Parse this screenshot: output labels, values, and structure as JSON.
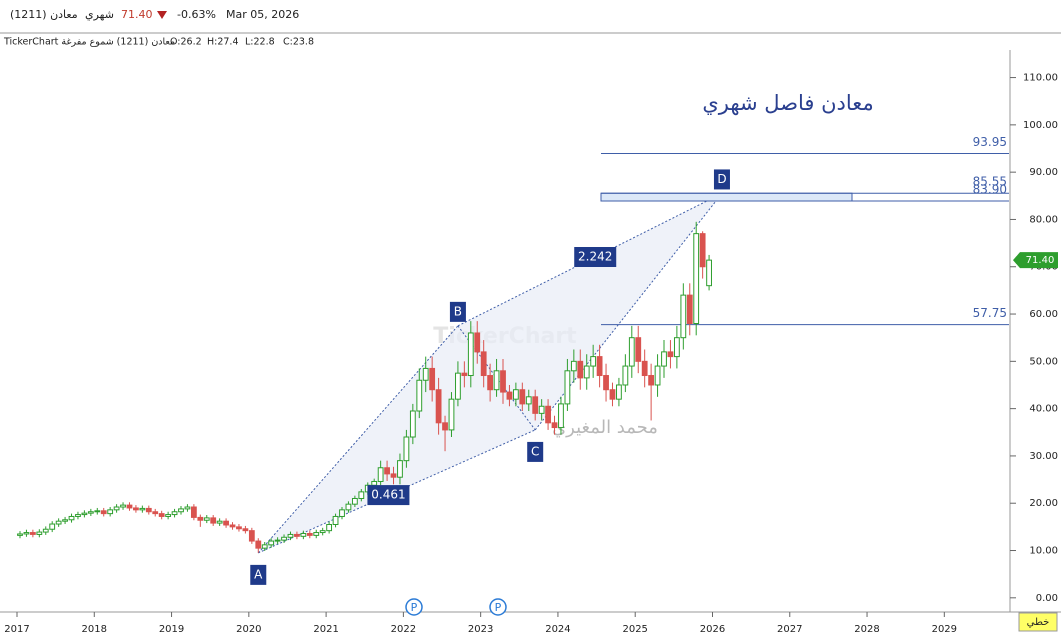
{
  "header": {
    "symbol": "معادن (1211)",
    "period": "شهري",
    "price": "71.40",
    "change": "-0.63%",
    "date": "Mar 05, 2026",
    "info": "TickerChart معادن (1211)  شموع مفرغة",
    "ohlc": [
      "O:26.2",
      "H:27.4",
      "L:22.8",
      "C:23.8"
    ]
  },
  "chart_data": {
    "type": "candlestick",
    "title": "معادن فاصل شهري",
    "watermark": "TickerChart",
    "author": "محمد المغيري",
    "open": [
      13.2,
      13.5,
      13.8,
      13.4,
      13.9,
      14.5,
      15.6,
      16.2,
      16.5,
      17.2,
      17.6,
      17.9,
      18.2,
      18.4,
      17.8,
      18.6,
      19.2,
      19.6,
      19.0,
      18.6,
      18.9,
      18.2,
      17.8,
      17.2,
      17.6,
      18.2,
      18.8,
      19.2,
      17.0,
      16.4,
      16.9,
      15.8,
      16.2,
      15.4,
      15.0,
      14.6,
      14.2,
      12.0,
      10.5,
      11.2,
      12.0,
      12.2,
      12.8,
      13.4,
      13.0,
      13.6,
      13.2,
      13.8,
      14.2,
      15.5,
      17.2,
      18.6,
      19.8,
      21.0,
      22.4,
      23.8,
      24.6,
      27.5,
      26.2,
      25.5,
      29.0,
      34.0,
      39.5,
      46.0,
      48.5,
      44.0,
      37.0,
      35.5,
      42.0,
      47.5,
      47.0,
      56.0,
      52.0,
      47.0,
      44.0,
      48.0,
      43.5,
      42.0,
      44.0,
      41.0,
      42.5,
      39.0,
      40.5,
      37.0,
      36.0,
      41.0,
      48.0,
      50.0,
      46.5,
      49.0,
      51.0,
      47.0,
      44.0,
      42.0,
      45.0,
      49.0,
      55,
      50,
      47,
      45,
      49,
      52,
      51,
      55,
      64,
      58,
      77,
      66
    ],
    "high": [
      14.1,
      14.4,
      14.4,
      14.5,
      15.1,
      16.2,
      16.8,
      17.1,
      17.8,
      18.2,
      18.5,
      18.8,
      19.0,
      19.0,
      19.2,
      19.8,
      20.2,
      20.2,
      19.6,
      19.5,
      19.5,
      18.8,
      18.4,
      18.2,
      18.8,
      19.4,
      19.8,
      19.8,
      17.6,
      17.5,
      17.5,
      16.8,
      16.8,
      16.0,
      15.6,
      15.2,
      14.8,
      12.6,
      11.8,
      12.6,
      12.8,
      13.4,
      14.0,
      14.0,
      14.2,
      14.2,
      14.4,
      14.8,
      16.1,
      17.8,
      19.2,
      20.4,
      21.6,
      23.0,
      24.4,
      25.2,
      29.0,
      29.0,
      27.7,
      30.5,
      35.5,
      41.0,
      48.5,
      51.0,
      51.0,
      46.5,
      38.5,
      43.5,
      50.0,
      50.0,
      58.5,
      58.5,
      54.5,
      49.5,
      50.5,
      50.5,
      45.0,
      45.5,
      45.5,
      44.0,
      44.0,
      42.0,
      42.0,
      38.5,
      42.5,
      50.5,
      52.5,
      52.5,
      51.5,
      53.5,
      53.5,
      49.5,
      45.5,
      46.5,
      51.5,
      57.5,
      57.5,
      52.5,
      49.5,
      51.5,
      54.5,
      54.5,
      57.5,
      66.5,
      66.5,
      79.5,
      77.5,
      72.5
    ],
    "low": [
      12.6,
      12.9,
      12.8,
      12.8,
      13.3,
      13.9,
      15.0,
      15.6,
      15.9,
      16.6,
      17.0,
      17.3,
      17.6,
      17.2,
      17.2,
      18.0,
      18.6,
      18.4,
      18.0,
      18.0,
      17.6,
      17.2,
      16.6,
      16.6,
      17.0,
      17.6,
      18.2,
      16.4,
      15.0,
      15.8,
      15.2,
      15.2,
      14.8,
      14.4,
      14.0,
      13.6,
      11.4,
      9.5,
      9.9,
      10.6,
      11.4,
      11.6,
      12.2,
      12.4,
      12.4,
      12.6,
      12.6,
      13.2,
      13.6,
      14.9,
      16.6,
      18.0,
      19.2,
      20.4,
      21.8,
      23.2,
      23.8,
      24.7,
      24.0,
      24.0,
      27.5,
      32.5,
      38.0,
      43.5,
      41.5,
      34.5,
      31.0,
      34.0,
      40.5,
      44.5,
      44.5,
      49.5,
      44.5,
      41.5,
      42.5,
      41.0,
      40.5,
      40.5,
      39.5,
      39.5,
      37.5,
      37.5,
      35.5,
      34.5,
      34.5,
      39.5,
      45.5,
      44.0,
      44.0,
      46.5,
      44.5,
      41.5,
      40.5,
      40.5,
      43.5,
      46.5,
      47.5,
      44.5,
      37.5,
      42.5,
      46.5,
      48.5,
      48.5,
      52.5,
      55.5,
      55.5,
      67.5,
      65.0
    ],
    "close": [
      13.5,
      13.8,
      13.4,
      13.9,
      14.5,
      15.6,
      16.2,
      16.5,
      17.2,
      17.6,
      17.9,
      18.2,
      18.4,
      17.8,
      18.6,
      19.2,
      19.6,
      19.0,
      18.6,
      18.9,
      18.2,
      17.8,
      17.2,
      17.6,
      18.2,
      18.8,
      19.2,
      17.0,
      16.4,
      16.9,
      15.8,
      16.2,
      15.4,
      15.0,
      14.6,
      14.2,
      12.0,
      10.5,
      11.2,
      12.0,
      12.2,
      12.8,
      13.4,
      13.0,
      13.6,
      13.2,
      13.8,
      14.2,
      15.5,
      17.2,
      18.6,
      19.8,
      21.0,
      22.4,
      23.8,
      24.6,
      27.5,
      26.2,
      25.5,
      29.0,
      34.0,
      39.5,
      46.0,
      48.5,
      44.0,
      37.0,
      35.5,
      42.0,
      47.5,
      47.0,
      56.0,
      52.0,
      47.0,
      44.0,
      48.0,
      43.5,
      42.0,
      44.0,
      41.0,
      42.5,
      39.0,
      40.5,
      37.0,
      36.0,
      41.0,
      48.0,
      50.0,
      46.5,
      49.0,
      51.0,
      47.0,
      44.0,
      42.0,
      45.0,
      49.0,
      55,
      50,
      47,
      45,
      49,
      52,
      51,
      55,
      64,
      58,
      77,
      70,
      71.4
    ],
    "up_color": "#2e9e2e",
    "down_color": "#d9534f",
    "ylim": [
      -3,
      119
    ],
    "yticks": [
      {
        "value": 0,
        "label": "0.00"
      },
      {
        "value": 10,
        "label": "10.00"
      },
      {
        "value": 20,
        "label": "20.00"
      },
      {
        "value": 30,
        "label": "30.00"
      },
      {
        "value": 40,
        "label": "40.00"
      },
      {
        "value": 50,
        "label": "50.00"
      },
      {
        "value": 60,
        "label": "60.00"
      },
      {
        "value": 70,
        "label": "70.00"
      },
      {
        "value": 80,
        "label": "80.00"
      },
      {
        "value": 90,
        "label": "90.00"
      },
      {
        "value": 100,
        "label": "100.00"
      },
      {
        "value": 110,
        "label": "110.00"
      }
    ],
    "xlim": [
      2016.78,
      2029.85
    ],
    "xticks": [
      2017,
      2018,
      2019,
      2020,
      2021,
      2022,
      2023,
      2024,
      2025,
      2026,
      2027,
      2028,
      2029
    ],
    "levels": [
      93.95,
      85.55,
      83.9,
      57.75
    ],
    "level_labels": [
      "93.95",
      "85.55",
      "83.90",
      "57.75"
    ],
    "level_color": "#3f5ea8",
    "pattern": [
      {
        "label": "A",
        "candle": 37,
        "value": 9.5
      },
      {
        "label": "B",
        "candle": 68,
        "value": 57.5
      },
      {
        "label": "C",
        "candle": 80,
        "value": 35.5
      },
      {
        "label": "D",
        "candle": 109,
        "value": 85.5
      }
    ],
    "ratios": [
      0.461,
      2.242
    ],
    "last_price": {
      "value": 71.4,
      "label": "71.40"
    },
    "events": [
      "P",
      "P"
    ],
    "scale_mode": "خطي"
  }
}
